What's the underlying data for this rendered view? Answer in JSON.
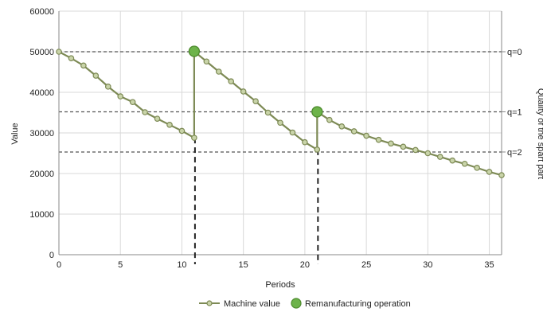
{
  "chart_data": {
    "type": "line",
    "title": "",
    "xlabel": "Periods",
    "ylabel": "Value",
    "y2label": "Quality of the spart part",
    "xlim": [
      0,
      36
    ],
    "ylim": [
      0,
      60000
    ],
    "xticks": [
      0,
      5,
      10,
      15,
      20,
      25,
      30,
      35
    ],
    "yticks": [
      0,
      10000,
      20000,
      30000,
      40000,
      50000,
      60000
    ],
    "grid": true,
    "legend_position": "bottom",
    "colors": {
      "line": "#7d8a55",
      "marker_fill": "#c9d4a9",
      "remanufacturing": "#6db34a",
      "remanufacturing_edge": "#4c8a2c",
      "grid": "#d9d9d9",
      "dashed": "#555555"
    },
    "series": [
      {
        "name": "Machine value",
        "segments": [
          {
            "x": [
              0,
              1,
              2,
              3,
              4,
              5,
              6,
              7,
              8,
              9,
              10,
              11
            ],
            "y": [
              50000,
              48400,
              46600,
              44100,
              41400,
              39000,
              37600,
              35100,
              33500,
              32000,
              30500,
              28800
            ]
          },
          {
            "x": [
              11,
              12,
              13,
              14,
              15,
              16,
              17,
              18,
              19,
              20,
              21
            ],
            "y": [
              50100,
              47600,
              45100,
              42700,
              40200,
              37800,
              35000,
              32500,
              30100,
              27700,
              25900
            ]
          },
          {
            "x": [
              21,
              22,
              23,
              24,
              25,
              26,
              27,
              28,
              29,
              30,
              31,
              32,
              33,
              34,
              35,
              36
            ],
            "y": [
              35200,
              33200,
              31600,
              30400,
              29300,
              28300,
              27400,
              26600,
              25800,
              25000,
              24100,
              23200,
              22400,
              21400,
              20400,
              19600
            ]
          }
        ],
        "verticals": [
          {
            "x": 11,
            "y_from": 28800,
            "y_to": 50100
          },
          {
            "x": 21,
            "y_from": 25900,
            "y_to": 35200
          }
        ]
      },
      {
        "name": "Remanufacturing operation",
        "x": [
          11,
          21
        ],
        "y": [
          50100,
          35200
        ]
      }
    ],
    "quality_levels": [
      {
        "label": "q=0",
        "y": 50000
      },
      {
        "label": "q=1",
        "y": 35200
      },
      {
        "label": "q=2",
        "y": 25300
      }
    ],
    "drop_lines_x": [
      11,
      21
    ],
    "legend": [
      {
        "label": "Machine value"
      },
      {
        "label": "Remanufacturing operation"
      }
    ]
  }
}
